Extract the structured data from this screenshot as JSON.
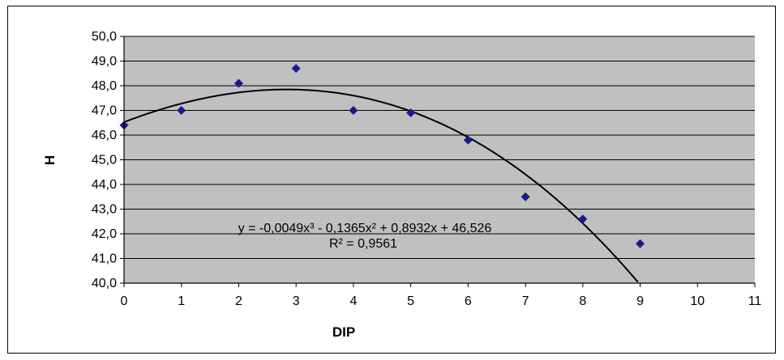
{
  "chart_data": {
    "type": "scatter",
    "title": "",
    "xlabel": "DIP",
    "ylabel": "H",
    "xlim": [
      0,
      11
    ],
    "ylim": [
      40,
      50
    ],
    "x_ticks": [
      "0",
      "1",
      "2",
      "3",
      "4",
      "5",
      "6",
      "7",
      "8",
      "9",
      "10",
      "11"
    ],
    "y_ticks": [
      "40,0",
      "41,0",
      "42,0",
      "43,0",
      "44,0",
      "45,0",
      "46,0",
      "47,0",
      "48,0",
      "49,0",
      "50,0"
    ],
    "grid": "horizontal",
    "plot_background": "#c0c0c0",
    "series": [
      {
        "marker_color": "#1a1a8c",
        "points": [
          {
            "x": 0,
            "y": 46.4
          },
          {
            "x": 1,
            "y": 47.0
          },
          {
            "x": 2,
            "y": 48.1
          },
          {
            "x": 3,
            "y": 48.7
          },
          {
            "x": 4,
            "y": 47.0
          },
          {
            "x": 5,
            "y": 46.9
          },
          {
            "x": 6,
            "y": 45.8
          },
          {
            "x": 7,
            "y": 43.5
          },
          {
            "x": 8,
            "y": 42.6
          },
          {
            "x": 9,
            "y": 41.6
          }
        ]
      }
    ],
    "trendline": {
      "type": "polynomial",
      "order": 3,
      "coefficients": [
        -0.0049,
        -0.1365,
        0.8932,
        46.526
      ],
      "color": "#000000",
      "equation": "y = -0,0049x³ - 0,1365x² + 0,8932x + 46,526",
      "r_squared": "R² = 0,9561"
    }
  }
}
